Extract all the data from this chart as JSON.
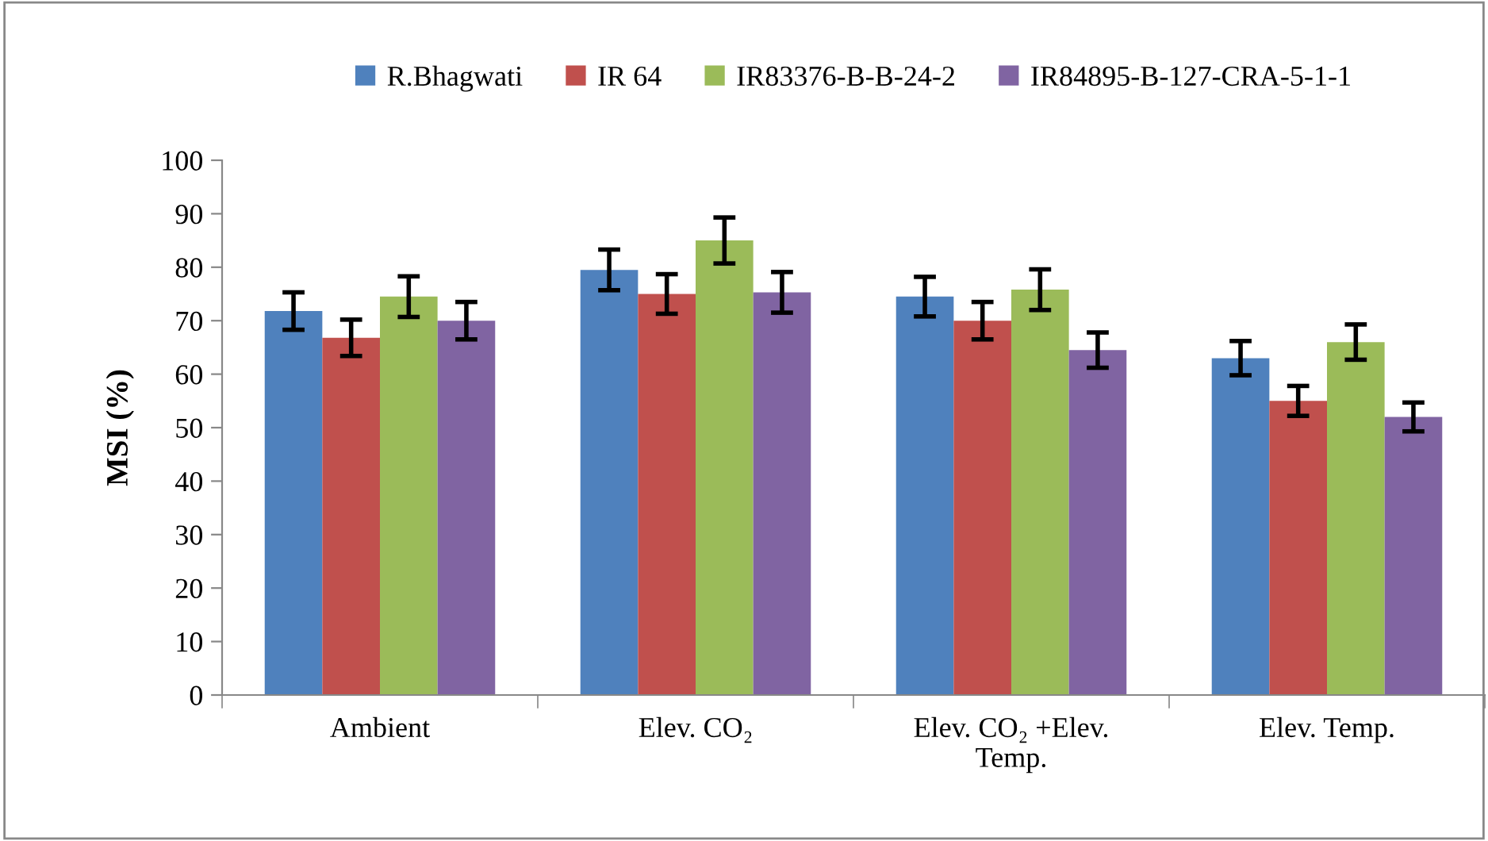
{
  "chart_data": {
    "type": "bar",
    "ylabel": "MSI (%)",
    "categories": [
      "Ambient",
      "Elev. CO₂",
      "Elev. CO₂ +Elev.\nTemp.",
      "Elev. Temp."
    ],
    "series": [
      {
        "name": "R.Bhagwati",
        "color": "#4f81bd",
        "values": [
          71.8,
          79.5,
          74.5,
          63
        ],
        "errors": [
          3.5,
          3.8,
          3.7,
          3.2
        ]
      },
      {
        "name": "IR 64",
        "color": "#c0504d",
        "values": [
          66.8,
          75,
          70,
          55
        ],
        "errors": [
          3.4,
          3.7,
          3.5,
          2.8
        ]
      },
      {
        "name": "IR83376-B-B-24-2",
        "color": "#9bbb59",
        "values": [
          74.5,
          85,
          75.8,
          66
        ],
        "errors": [
          3.8,
          4.3,
          3.8,
          3.3
        ]
      },
      {
        "name": "IR84895-B-127-CRA-5-1-1",
        "color": "#8064a2",
        "values": [
          70,
          75.3,
          64.5,
          52
        ],
        "errors": [
          3.5,
          3.8,
          3.3,
          2.7
        ]
      }
    ],
    "ylim": [
      0,
      100
    ],
    "yticks": [
      0,
      10,
      20,
      30,
      40,
      50,
      60,
      70,
      80,
      90,
      100
    ],
    "grid": false,
    "legend": "top"
  }
}
